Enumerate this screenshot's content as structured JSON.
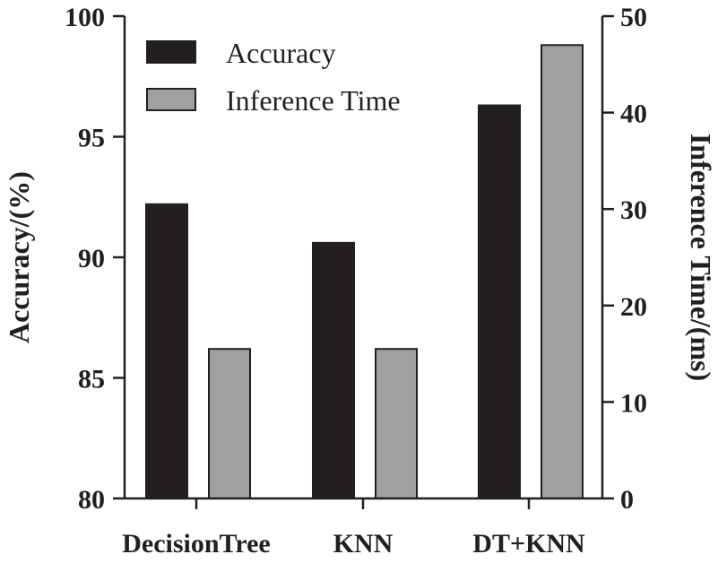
{
  "chart_data": {
    "type": "bar",
    "categories": [
      "DecisionTree",
      "KNN",
      "DT+KNN"
    ],
    "series": [
      {
        "name": "Accuracy",
        "axis": "left",
        "color": "#231f20",
        "values": [
          92.2,
          90.6,
          96.3
        ]
      },
      {
        "name": "Inference Time",
        "axis": "right",
        "color": "#a0a0a3",
        "values": [
          15.5,
          15.5,
          47.0
        ]
      }
    ],
    "y_left": {
      "label": "Accuracy/(%)",
      "range": [
        80,
        100
      ],
      "ticks": [
        "80",
        "85",
        "90",
        "95",
        "100"
      ]
    },
    "y_right": {
      "label": "Inference Time/(ms)",
      "range": [
        0,
        50
      ],
      "ticks": [
        "0",
        "10",
        "20",
        "30",
        "40",
        "50"
      ]
    },
    "grid": false,
    "legend_position": "top-left"
  }
}
